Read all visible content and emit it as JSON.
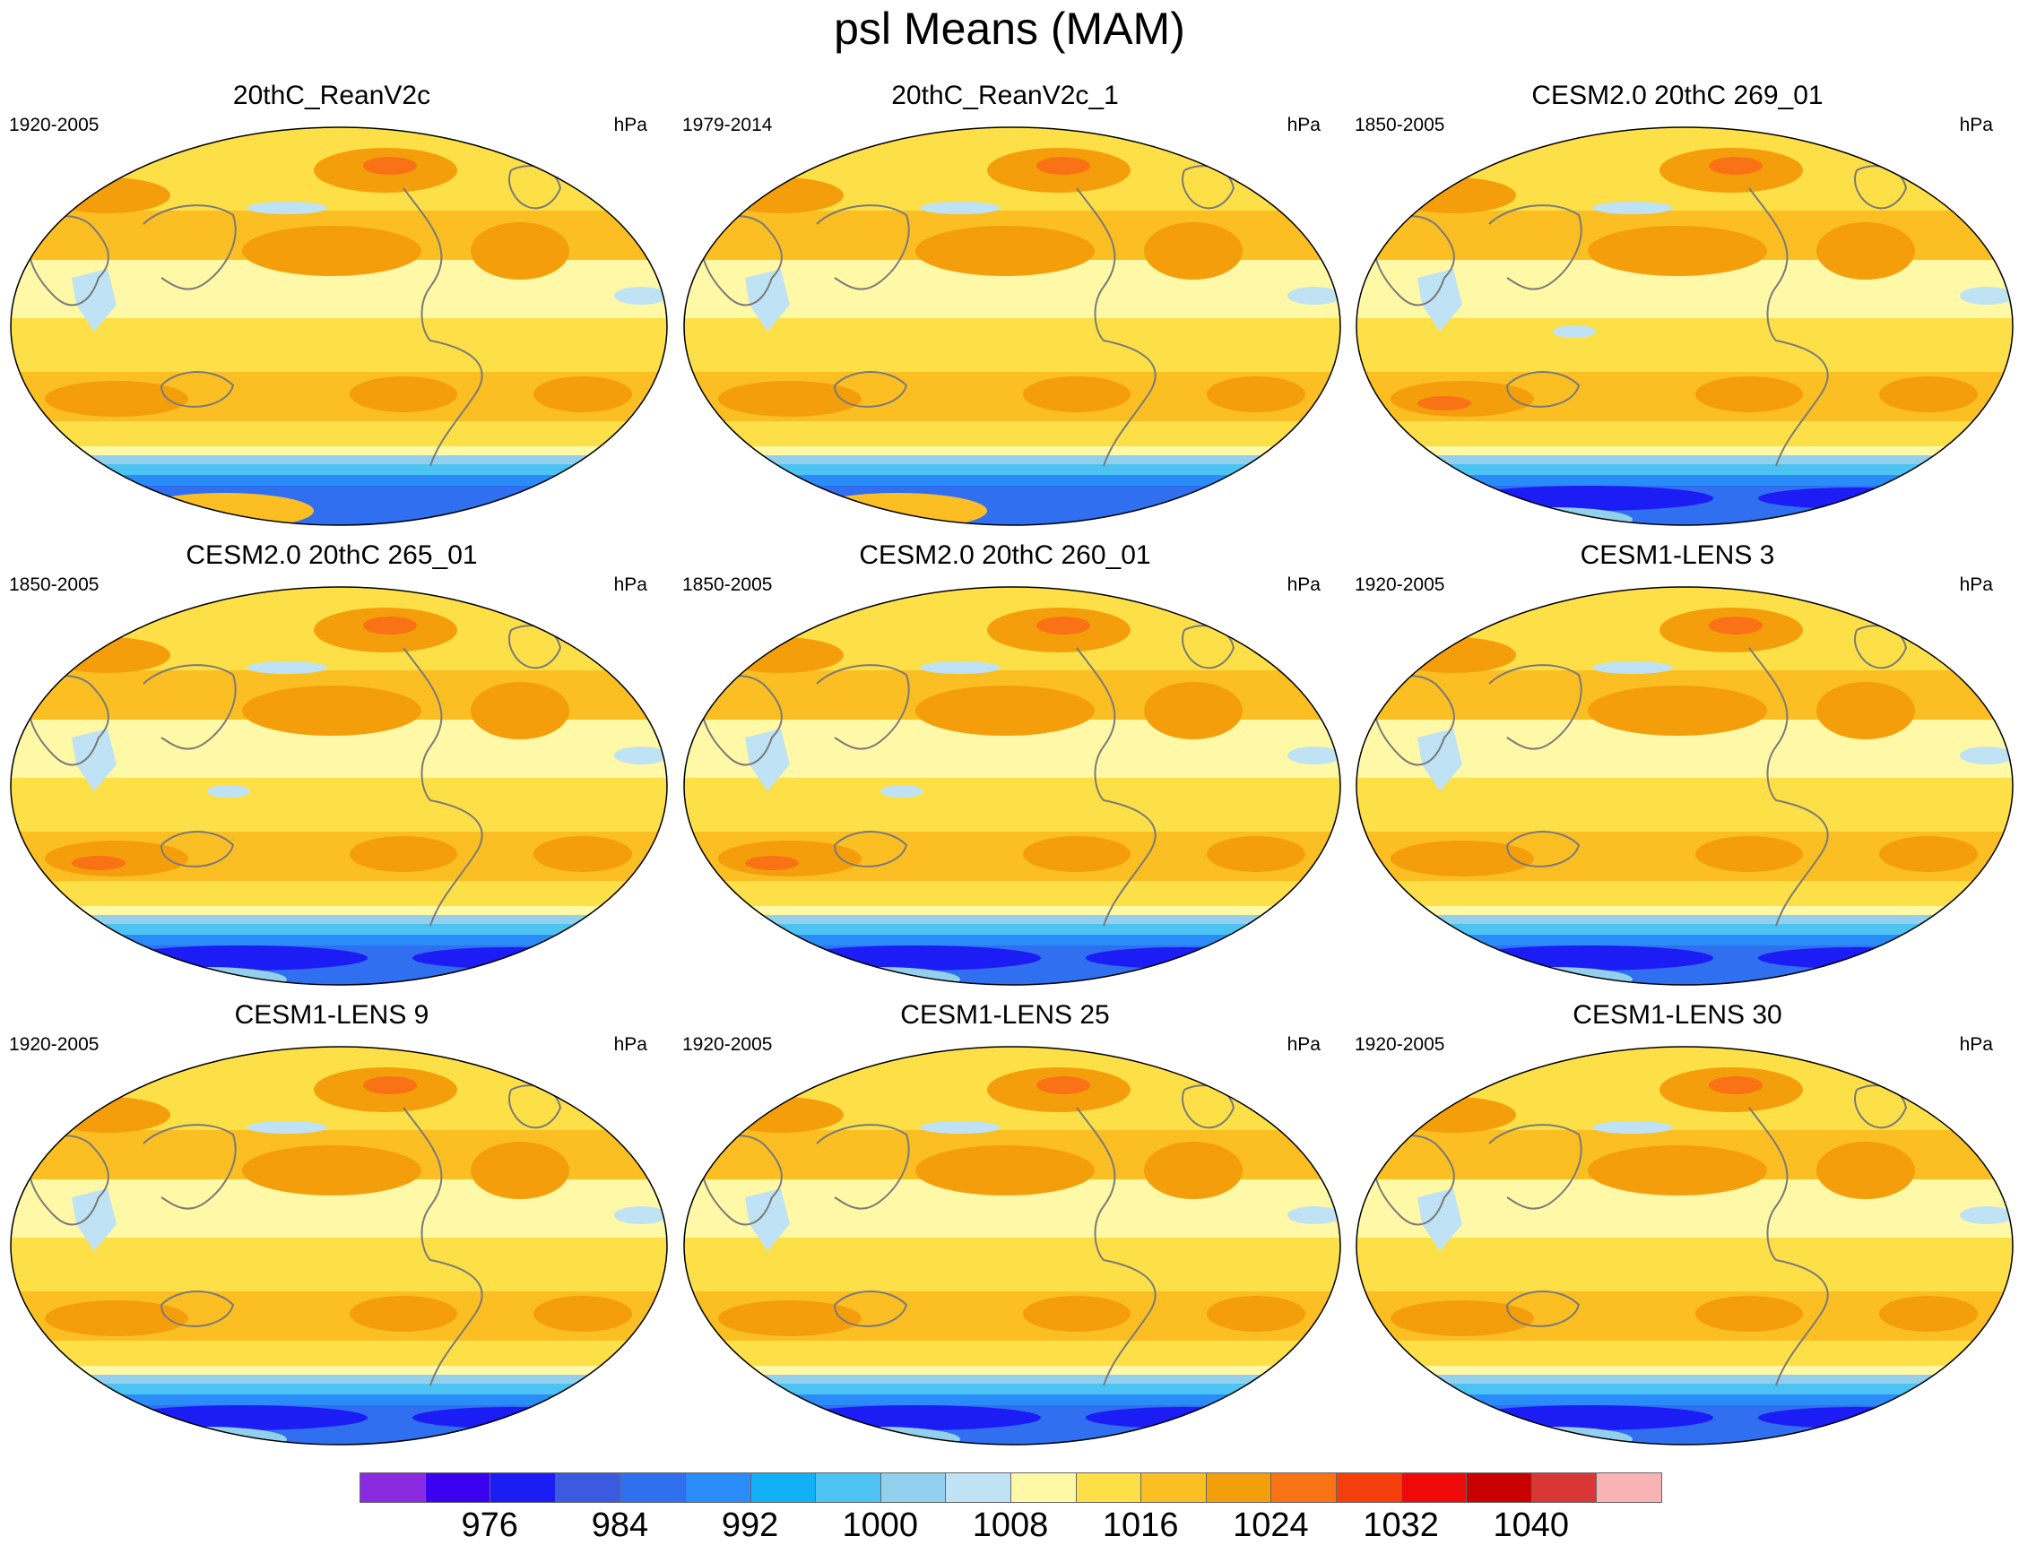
{
  "title": "psl Means (MAM)",
  "panels": [
    {
      "title": "20thC_ReanV2c",
      "period": "1920-2005",
      "units": "hPa"
    },
    {
      "title": "20thC_ReanV2c_1",
      "period": "1979-2014",
      "units": "hPa"
    },
    {
      "title": "CESM2.0 20thC 269_01",
      "period": "1850-2005",
      "units": "hPa"
    },
    {
      "title": "CESM2.0 20thC 265_01",
      "period": "1850-2005",
      "units": "hPa"
    },
    {
      "title": "CESM2.0 20thC 260_01",
      "period": "1850-2005",
      "units": "hPa"
    },
    {
      "title": "CESM1-LENS 3",
      "period": "1920-2005",
      "units": "hPa"
    },
    {
      "title": "CESM1-LENS 9",
      "period": "1920-2005",
      "units": "hPa"
    },
    {
      "title": "CESM1-LENS 25",
      "period": "1920-2005",
      "units": "hPa"
    },
    {
      "title": "CESM1-LENS 30",
      "period": "1920-2005",
      "units": "hPa"
    }
  ],
  "colorbar": {
    "colors": [
      "#8a2be2",
      "#3b00f0",
      "#1c1cf5",
      "#3a5ae0",
      "#2f6ff0",
      "#2a8cf8",
      "#12b0f5",
      "#4cc3f2",
      "#93d0ee",
      "#bfe3f5",
      "#fff8a6",
      "#fde047",
      "#fbbf24",
      "#f59e0b",
      "#f97316",
      "#f43f0c",
      "#ef0a0a",
      "#c80000",
      "#d93636",
      "#f8b3b3"
    ],
    "labels": [
      "976",
      "984",
      "992",
      "1000",
      "1008",
      "1016",
      "1024",
      "1032",
      "1040"
    ]
  }
}
